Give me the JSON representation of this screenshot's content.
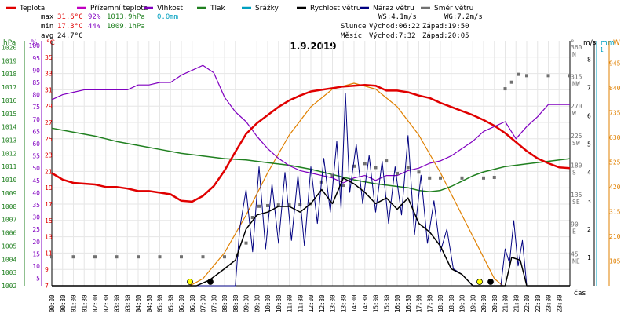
{
  "chart_data": {
    "type": "line",
    "title": "1.9.2019",
    "legend": [
      {
        "label": "Teplota",
        "color": "#e00000"
      },
      {
        "label": "Přízemní teplota",
        "color": "#c000c0"
      },
      {
        "label": "Vlhkost",
        "color": "#8000c0"
      },
      {
        "label": "Tlak",
        "color": "#208020"
      },
      {
        "label": "Srážky",
        "color": "#00a0c0"
      },
      {
        "label": "Rychlost větru",
        "color": "#000000"
      },
      {
        "label": "Náraz větru",
        "color": "#000080"
      },
      {
        "label": "Směr větru",
        "color": "#707070"
      }
    ],
    "stats": {
      "max_label": "max",
      "min_label": "min",
      "avg_label": "avg",
      "max": {
        "temp": "31.6°C",
        "hum": "92%",
        "pres": "1013.9hPa",
        "rain": "0.0mm"
      },
      "min": {
        "temp": "17.3°C",
        "hum": "44%",
        "pres": "1009.1hPa"
      },
      "avg": {
        "temp": "24.7°C"
      },
      "ws": "WS:4.1m/s",
      "wg": "WG:7.2m/s",
      "sun": {
        "label": "Slunce",
        "rise": "Východ:06:22",
        "set": "Západ:19:50"
      },
      "moon": {
        "label": "Měsíc",
        "rise": "Východ:7:32",
        "set": "Západ:20:05"
      }
    },
    "axes": {
      "hpa": {
        "unit": "hPa",
        "ticks": [
          "1020",
          "1019",
          "1018",
          "1017",
          "1016",
          "1015",
          "1014",
          "1013",
          "1012",
          "1011",
          "1010",
          "1009",
          "1008",
          "1007",
          "1006",
          "1005",
          "1004",
          "1003",
          "1002"
        ],
        "range": [
          1002,
          1020.5
        ]
      },
      "pct": {
        "unit": "%",
        "ticks": [
          "100",
          "95",
          "90",
          "85",
          "80",
          "75",
          "70",
          "65",
          "60",
          "55",
          "50",
          "45",
          "40",
          "35",
          "30",
          "25",
          "20",
          "15",
          "10",
          "5"
        ],
        "range": [
          2,
          102
        ]
      },
      "celsius": {
        "unit": "°C",
        "ticks": [
          "35",
          "33",
          "31",
          "29",
          "27",
          "25",
          "23",
          "21",
          "19",
          "17",
          "15",
          "13",
          "11",
          "9",
          "7"
        ],
        "range": [
          7,
          37
        ]
      },
      "direction": {
        "unit": "°",
        "ticks": [
          {
            "deg": "360",
            "dir": "N"
          },
          {
            "deg": "315",
            "dir": "NW"
          },
          {
            "deg": "270",
            "dir": "W"
          },
          {
            "deg": "225",
            "dir": "SW"
          },
          {
            "deg": "180",
            "dir": "S"
          },
          {
            "deg": "135",
            "dir": "SE"
          },
          {
            "deg": "90",
            "dir": "E"
          },
          {
            "deg": "45",
            "dir": "NE"
          }
        ],
        "range": [
          0,
          373
        ]
      },
      "wind": {
        "unit": "m/s",
        "ticks": [
          "8",
          "7",
          "6",
          "5",
          "4",
          "3",
          "2",
          "1"
        ],
        "range": [
          0,
          8.65
        ]
      },
      "rain": {
        "unit": "mm",
        "ticks": [
          "1"
        ]
      },
      "solar": {
        "unit": "W",
        "ticks": [
          "945",
          "840",
          "735",
          "630",
          "525",
          "420",
          "315",
          "210",
          "105"
        ],
        "range": [
          0,
          1040
        ]
      },
      "x_label": "čas",
      "x_ticks": [
        "00:00",
        "00:30",
        "01:00",
        "01:30",
        "02:00",
        "02:30",
        "03:00",
        "03:30",
        "04:00",
        "04:30",
        "05:00",
        "05:30",
        "06:00",
        "06:30",
        "07:00",
        "07:30",
        "08:00",
        "08:30",
        "09:00",
        "09:30",
        "10:00",
        "10:30",
        "11:00",
        "11:30",
        "12:00",
        "12:30",
        "13:00",
        "13:30",
        "14:00",
        "14:30",
        "15:00",
        "15:30",
        "16:00",
        "16:30",
        "17:00",
        "17:30",
        "18:00",
        "18:30",
        "19:00",
        "19:30",
        "20:00",
        "20:30",
        "21:00",
        "21:30",
        "22:00",
        "22:30",
        "23:00",
        "23:30"
      ]
    },
    "series": {
      "temperature": [
        [
          0,
          20.8
        ],
        [
          0.5,
          20.0
        ],
        [
          1,
          19.6
        ],
        [
          1.5,
          19.5
        ],
        [
          2,
          19.4
        ],
        [
          2.5,
          19.1
        ],
        [
          3,
          19.1
        ],
        [
          3.5,
          18.9
        ],
        [
          4,
          18.6
        ],
        [
          4.5,
          18.6
        ],
        [
          5,
          18.4
        ],
        [
          5.5,
          18.2
        ],
        [
          6,
          17.4
        ],
        [
          6.5,
          17.3
        ],
        [
          7,
          18.0
        ],
        [
          7.5,
          19.2
        ],
        [
          8,
          21.1
        ],
        [
          8.5,
          23.4
        ],
        [
          9,
          25.6
        ],
        [
          9.5,
          26.9
        ],
        [
          10,
          27.9
        ],
        [
          10.5,
          28.9
        ],
        [
          11,
          29.7
        ],
        [
          11.5,
          30.3
        ],
        [
          12,
          30.8
        ],
        [
          12.5,
          31.0
        ],
        [
          13,
          31.2
        ],
        [
          13.5,
          31.4
        ],
        [
          14,
          31.5
        ],
        [
          14.5,
          31.6
        ],
        [
          15,
          31.5
        ],
        [
          15.5,
          30.9
        ],
        [
          16,
          30.9
        ],
        [
          16.5,
          30.7
        ],
        [
          17,
          30.3
        ],
        [
          17.5,
          30.0
        ],
        [
          18,
          29.4
        ],
        [
          18.5,
          28.9
        ],
        [
          19,
          28.4
        ],
        [
          19.5,
          27.9
        ],
        [
          20,
          27.3
        ],
        [
          20.5,
          26.6
        ],
        [
          21,
          25.7
        ],
        [
          21.5,
          24.6
        ],
        [
          22,
          23.5
        ],
        [
          22.5,
          22.6
        ],
        [
          23,
          22.0
        ],
        [
          23.5,
          21.5
        ],
        [
          24,
          21.4
        ]
      ],
      "humidity": [
        [
          0,
          78
        ],
        [
          0.5,
          80
        ],
        [
          1,
          81
        ],
        [
          1.5,
          82
        ],
        [
          2,
          82
        ],
        [
          2.5,
          82
        ],
        [
          3,
          82
        ],
        [
          3.5,
          82
        ],
        [
          4,
          84
        ],
        [
          4.5,
          84
        ],
        [
          5,
          85
        ],
        [
          5.5,
          85
        ],
        [
          6,
          88
        ],
        [
          6.5,
          90
        ],
        [
          7,
          92
        ],
        [
          7.5,
          89
        ],
        [
          8,
          79
        ],
        [
          8.5,
          73
        ],
        [
          9,
          69
        ],
        [
          9.5,
          63
        ],
        [
          10,
          58
        ],
        [
          10.5,
          54
        ],
        [
          11,
          51
        ],
        [
          11.5,
          49
        ],
        [
          12,
          48
        ],
        [
          12.5,
          47
        ],
        [
          13,
          46
        ],
        [
          13.5,
          44
        ],
        [
          14,
          46
        ],
        [
          14.5,
          47
        ],
        [
          15,
          45
        ],
        [
          15.5,
          47
        ],
        [
          16,
          47
        ],
        [
          16.5,
          49
        ],
        [
          17,
          50
        ],
        [
          17.5,
          52
        ],
        [
          18,
          53
        ],
        [
          18.5,
          55
        ],
        [
          19,
          58
        ],
        [
          19.5,
          61
        ],
        [
          20,
          65
        ],
        [
          20.5,
          67
        ],
        [
          21,
          69
        ],
        [
          21.5,
          62
        ],
        [
          22,
          67
        ],
        [
          22.5,
          71
        ],
        [
          23,
          76
        ],
        [
          23.5,
          76
        ],
        [
          24,
          76
        ]
      ],
      "pressure": [
        [
          0,
          1013.9
        ],
        [
          1,
          1013.6
        ],
        [
          2,
          1013.3
        ],
        [
          3,
          1012.9
        ],
        [
          4,
          1012.6
        ],
        [
          5,
          1012.3
        ],
        [
          6,
          1012.0
        ],
        [
          7,
          1011.8
        ],
        [
          8,
          1011.6
        ],
        [
          9,
          1011.5
        ],
        [
          10,
          1011.3
        ],
        [
          11,
          1011.1
        ],
        [
          12,
          1010.8
        ],
        [
          13,
          1010.4
        ],
        [
          14,
          1010.0
        ],
        [
          15,
          1009.7
        ],
        [
          16,
          1009.5
        ],
        [
          16.5,
          1009.4
        ],
        [
          17,
          1009.2
        ],
        [
          17.5,
          1009.1
        ],
        [
          18,
          1009.2
        ],
        [
          18.5,
          1009.5
        ],
        [
          19,
          1009.9
        ],
        [
          19.5,
          1010.3
        ],
        [
          20,
          1010.6
        ],
        [
          20.5,
          1010.8
        ],
        [
          21,
          1011.0
        ],
        [
          22,
          1011.2
        ],
        [
          23,
          1011.4
        ],
        [
          24,
          1011.6
        ]
      ],
      "wind_speed": [
        [
          0,
          0
        ],
        [
          6.7,
          0
        ],
        [
          7.3,
          0.2
        ],
        [
          8,
          0.6
        ],
        [
          8.5,
          0.9
        ],
        [
          9,
          2.0
        ],
        [
          9.5,
          2.5
        ],
        [
          10,
          2.6
        ],
        [
          10.5,
          2.8
        ],
        [
          11,
          2.8
        ],
        [
          11.5,
          2.6
        ],
        [
          12,
          2.9
        ],
        [
          12.5,
          3.4
        ],
        [
          13,
          2.9
        ],
        [
          13.5,
          3.8
        ],
        [
          14,
          3.6
        ],
        [
          14.5,
          3.3
        ],
        [
          15,
          2.9
        ],
        [
          15.5,
          3.1
        ],
        [
          16,
          2.7
        ],
        [
          16.5,
          3.1
        ],
        [
          17,
          2.2
        ],
        [
          17.5,
          1.9
        ],
        [
          18,
          1.4
        ],
        [
          18.5,
          0.6
        ],
        [
          19,
          0.4
        ],
        [
          19.5,
          0
        ],
        [
          21,
          0
        ],
        [
          21.3,
          1.0
        ],
        [
          21.7,
          0.9
        ],
        [
          22,
          0
        ],
        [
          24,
          0
        ]
      ],
      "wind_gust": [
        [
          0,
          0
        ],
        [
          8.5,
          0
        ],
        [
          8.7,
          2.0
        ],
        [
          9,
          3.4
        ],
        [
          9.3,
          1.2
        ],
        [
          9.6,
          4.2
        ],
        [
          9.9,
          1.3
        ],
        [
          10.2,
          3.6
        ],
        [
          10.5,
          1.5
        ],
        [
          10.8,
          4.0
        ],
        [
          11.1,
          1.6
        ],
        [
          11.4,
          3.9
        ],
        [
          11.7,
          1.4
        ],
        [
          12,
          4.2
        ],
        [
          12.3,
          2.2
        ],
        [
          12.6,
          4.5
        ],
        [
          12.9,
          2.6
        ],
        [
          13.2,
          5.1
        ],
        [
          13.4,
          2.7
        ],
        [
          13.6,
          6.8
        ],
        [
          13.8,
          3.3
        ],
        [
          14.1,
          5.0
        ],
        [
          14.4,
          2.9
        ],
        [
          14.7,
          4.6
        ],
        [
          15,
          2.6
        ],
        [
          15.3,
          4.4
        ],
        [
          15.6,
          2.2
        ],
        [
          15.9,
          4.2
        ],
        [
          16.2,
          2.5
        ],
        [
          16.5,
          5.3
        ],
        [
          16.8,
          1.8
        ],
        [
          17.1,
          3.9
        ],
        [
          17.4,
          1.5
        ],
        [
          17.7,
          3.0
        ],
        [
          18,
          1.2
        ],
        [
          18.3,
          2.0
        ],
        [
          18.6,
          0.6
        ],
        [
          19,
          0.4
        ],
        [
          19.5,
          0
        ],
        [
          20.8,
          0
        ],
        [
          21,
          1.3
        ],
        [
          21.2,
          0.8
        ],
        [
          21.4,
          2.3
        ],
        [
          21.6,
          0.7
        ],
        [
          21.8,
          1.6
        ],
        [
          22,
          0
        ],
        [
          24,
          0
        ]
      ],
      "wind_dir": [
        [
          0,
          44
        ],
        [
          1,
          44
        ],
        [
          2,
          44
        ],
        [
          3,
          44
        ],
        [
          4,
          44
        ],
        [
          5,
          44
        ],
        [
          6,
          44
        ],
        [
          7,
          44
        ],
        [
          8,
          44
        ],
        [
          8.6,
          47
        ],
        [
          9,
          65
        ],
        [
          9.3,
          104
        ],
        [
          9.6,
          121
        ],
        [
          10,
          122
        ],
        [
          10.5,
          123
        ],
        [
          11,
          123
        ],
        [
          11.5,
          124
        ],
        [
          12,
          125
        ],
        [
          12.5,
          158
        ],
        [
          13,
          168
        ],
        [
          13.5,
          153
        ],
        [
          14,
          182
        ],
        [
          14.5,
          186
        ],
        [
          15,
          180
        ],
        [
          15.5,
          190
        ],
        [
          16,
          171
        ],
        [
          16.5,
          180
        ],
        [
          17,
          173
        ],
        [
          17.5,
          164
        ],
        [
          18,
          164
        ],
        [
          19,
          164
        ],
        [
          20,
          164
        ],
        [
          20.5,
          165
        ],
        [
          21,
          300
        ],
        [
          21.3,
          310
        ],
        [
          21.6,
          322
        ],
        [
          22,
          320
        ],
        [
          23,
          320
        ],
        [
          24,
          320
        ]
      ],
      "solar": [
        [
          6.4,
          0
        ],
        [
          7,
          30
        ],
        [
          8,
          140
        ],
        [
          9,
          300
        ],
        [
          10,
          480
        ],
        [
          11,
          640
        ],
        [
          12,
          760
        ],
        [
          13,
          835
        ],
        [
          14,
          860
        ],
        [
          15,
          835
        ],
        [
          16,
          760
        ],
        [
          17,
          640
        ],
        [
          18,
          480
        ],
        [
          19,
          300
        ],
        [
          20,
          120
        ],
        [
          20.5,
          30
        ],
        [
          20.9,
          0
        ]
      ]
    }
  }
}
